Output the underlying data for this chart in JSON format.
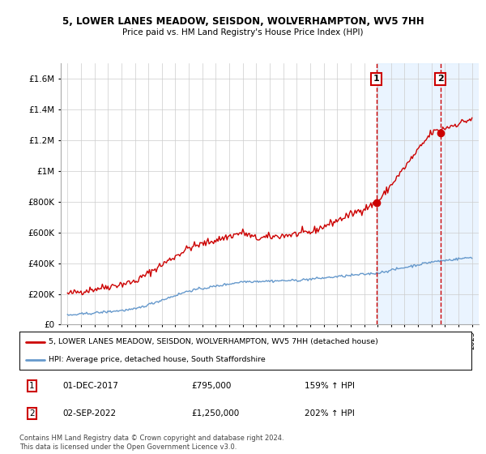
{
  "title": "5, LOWER LANES MEADOW, SEISDON, WOLVERHAMPTON, WV5 7HH",
  "subtitle": "Price paid vs. HM Land Registry's House Price Index (HPI)",
  "legend_line1": "5, LOWER LANES MEADOW, SEISDON, WOLVERHAMPTON, WV5 7HH (detached house)",
  "legend_line2": "HPI: Average price, detached house, South Staffordshire",
  "annotation1_date": "01-DEC-2017",
  "annotation1_price": "£795,000",
  "annotation1_hpi": "159% ↑ HPI",
  "annotation2_date": "02-SEP-2022",
  "annotation2_price": "£1,250,000",
  "annotation2_hpi": "202% ↑ HPI",
  "footnote": "Contains HM Land Registry data © Crown copyright and database right 2024.\nThis data is licensed under the Open Government Licence v3.0.",
  "red_color": "#cc0000",
  "blue_color": "#6699cc",
  "grid_color": "#cccccc",
  "annotation_box_color": "#cc0000",
  "highlight_bg": "#ddeeff",
  "ylim": [
    0,
    1700000
  ],
  "yticks": [
    0,
    200000,
    400000,
    600000,
    800000,
    1000000,
    1200000,
    1400000,
    1600000
  ],
  "ytick_labels": [
    "£0",
    "£200K",
    "£400K",
    "£600K",
    "£800K",
    "£1M",
    "£1.2M",
    "£1.4M",
    "£1.6M"
  ],
  "sale1_x": 2017.917,
  "sale1_y": 795000,
  "sale2_x": 2022.667,
  "sale2_y": 1250000,
  "vline1_x": 2017.917,
  "vline2_x": 2022.667,
  "xmin": 1994.5,
  "xmax": 2025.5
}
